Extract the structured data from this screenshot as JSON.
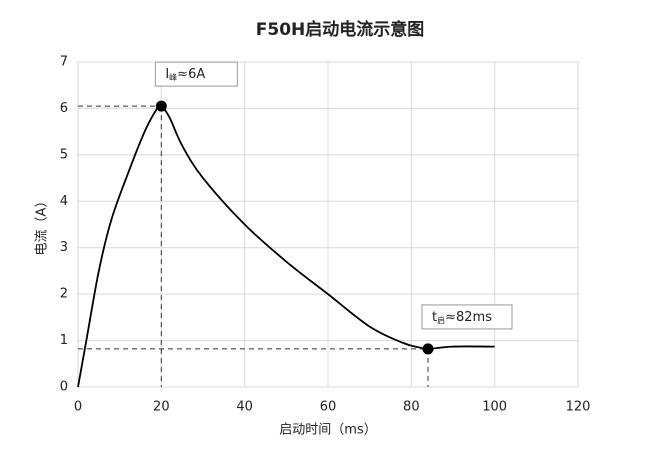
{
  "chart_data": {
    "type": "line",
    "title": "F50H启动电流示意图",
    "x_label": "启动时间（ms）",
    "y_label": "电流（A）",
    "x": [
      0,
      2,
      5,
      8,
      12,
      16,
      19,
      20,
      22,
      25,
      30,
      40,
      50,
      60,
      70,
      78,
      82,
      84,
      90,
      100
    ],
    "values": [
      0,
      1.0,
      2.5,
      3.6,
      4.6,
      5.5,
      6.0,
      6.05,
      5.8,
      5.2,
      4.5,
      3.5,
      2.7,
      2.0,
      1.3,
      0.95,
      0.85,
      0.82,
      0.87,
      0.87
    ],
    "color": "#000000",
    "xlim": [
      0,
      120
    ],
    "xticks": [
      0,
      20,
      40,
      60,
      80,
      100,
      120
    ],
    "ylim": [
      0,
      7
    ],
    "yticks": [
      0,
      1,
      2,
      3,
      4,
      5,
      6,
      7
    ],
    "grid": true,
    "annotations": [
      {
        "x": 20,
        "y": 6.05,
        "text": "I",
        "sub": "峰",
        "rest": "≈6A"
      },
      {
        "x": 84,
        "y": 0.82,
        "text": "t",
        "sub": "启",
        "rest": "≈82ms"
      }
    ]
  }
}
